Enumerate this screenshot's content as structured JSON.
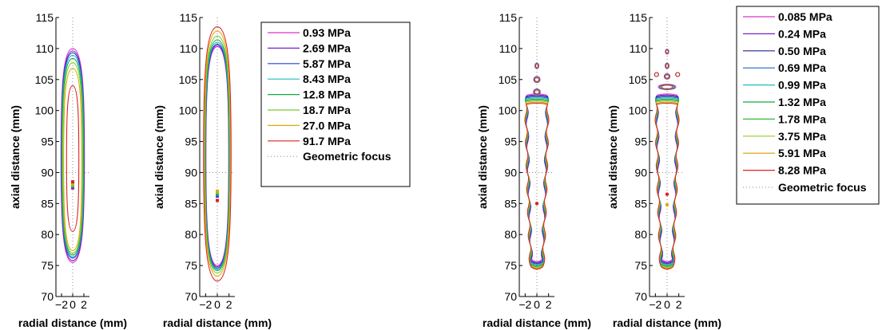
{
  "chart_data": [
    {
      "type": "line",
      "panel": "a-left",
      "xlabel": "radial distance (mm)",
      "ylabel": "axial distance (mm)",
      "xlim": [
        -3,
        3
      ],
      "ylim": [
        70,
        115
      ],
      "xticks": [
        "−2",
        "0",
        "2"
      ],
      "yticks": [
        "70",
        "75",
        "80",
        "85",
        "90",
        "95",
        "100",
        "105",
        "110",
        "115"
      ],
      "geometric_focus": [
        0,
        90
      ],
      "series": [
        {
          "name": "0.93 MPa",
          "color": "#dd33cc",
          "contour": {
            "center": 92.7,
            "top": 110.0,
            "bottom": 75.5,
            "halfwidth": 2.1
          },
          "peak": [
            0,
            87.5
          ]
        },
        {
          "name": "2.69 MPa",
          "color": "#7722cc",
          "contour": {
            "center": 92.7,
            "top": 109.6,
            "bottom": 75.8,
            "halfwidth": 2.05
          },
          "peak": [
            0,
            87.6
          ]
        },
        {
          "name": "5.87 MPa",
          "color": "#2244cc",
          "contour": {
            "center": 92.7,
            "top": 109.3,
            "bottom": 76.2,
            "halfwidth": 2.0
          },
          "peak": [
            0,
            87.7
          ]
        },
        {
          "name": "8.43 MPa",
          "color": "#22bbbb",
          "contour": {
            "center": 92.6,
            "top": 108.9,
            "bottom": 76.4,
            "halfwidth": 1.95
          },
          "peak": [
            0,
            87.8
          ]
        },
        {
          "name": "12.8 MPa",
          "color": "#11aa44",
          "contour": {
            "center": 92.5,
            "top": 108.4,
            "bottom": 76.7,
            "halfwidth": 1.88
          },
          "peak": [
            0,
            87.9
          ]
        },
        {
          "name": "18.7 MPa",
          "color": "#77cc33",
          "contour": {
            "center": 92.3,
            "top": 107.7,
            "bottom": 77.0,
            "halfwidth": 1.78
          },
          "peak": [
            0,
            88.0
          ]
        },
        {
          "name": "27.0 MPa",
          "color": "#ddaa00",
          "contour": {
            "center": 92.0,
            "top": 106.8,
            "bottom": 77.4,
            "halfwidth": 1.62
          },
          "peak": [
            0,
            88.2
          ]
        },
        {
          "name": "91.7 MPa",
          "color": "#dd2222",
          "contour": {
            "center": 92.2,
            "top": 104.0,
            "bottom": 80.5,
            "halfwidth": 1.1
          },
          "peak": [
            0,
            88.5
          ]
        }
      ]
    },
    {
      "type": "line",
      "panel": "a-right",
      "xlabel": "radial distance (mm)",
      "ylabel": "axial distance (mm)",
      "xlim": [
        -3,
        3
      ],
      "ylim": [
        70,
        115
      ],
      "xticks": [
        "−2",
        "0",
        "2"
      ],
      "yticks": [
        "70",
        "75",
        "80",
        "85",
        "90",
        "95",
        "100",
        "105",
        "110",
        "115"
      ],
      "geometric_focus": [
        0,
        90
      ],
      "series": [
        {
          "name": "0.93 MPa",
          "color": "#dd33cc",
          "contour": {
            "center": 92.6,
            "top": 110.3,
            "bottom": 75.0,
            "halfwidth": 1.95
          },
          "peak": [
            0,
            86.2
          ]
        },
        {
          "name": "2.69 MPa",
          "color": "#7722cc",
          "contour": {
            "center": 92.6,
            "top": 110.5,
            "bottom": 74.8,
            "halfwidth": 1.97
          },
          "peak": [
            0,
            86.2
          ]
        },
        {
          "name": "5.87 MPa",
          "color": "#2244cc",
          "contour": {
            "center": 92.6,
            "top": 110.7,
            "bottom": 74.6,
            "halfwidth": 2.0
          },
          "peak": [
            0,
            86.3
          ]
        },
        {
          "name": "8.43 MPa",
          "color": "#22bbbb",
          "contour": {
            "center": 92.6,
            "top": 111.0,
            "bottom": 74.4,
            "halfwidth": 2.04
          },
          "peak": [
            0,
            86.5
          ]
        },
        {
          "name": "12.8 MPa",
          "color": "#11aa44",
          "contour": {
            "center": 92.7,
            "top": 111.4,
            "bottom": 74.2,
            "halfwidth": 2.08
          },
          "peak": [
            0,
            86.6
          ]
        },
        {
          "name": "18.7 MPa",
          "color": "#77cc33",
          "contour": {
            "center": 92.8,
            "top": 112.0,
            "bottom": 73.8,
            "halfwidth": 2.14
          },
          "peak": [
            0,
            86.8
          ]
        },
        {
          "name": "27.0 MPa",
          "color": "#ddaa00",
          "contour": {
            "center": 92.9,
            "top": 112.8,
            "bottom": 73.3,
            "halfwidth": 2.22
          },
          "peak": [
            0,
            87.0
          ]
        },
        {
          "name": "91.7 MPa",
          "color": "#dd2222",
          "contour": {
            "center": 93.0,
            "top": 113.5,
            "bottom": 72.5,
            "halfwidth": 2.35
          },
          "peak": [
            0,
            85.5
          ]
        }
      ],
      "legend": {
        "entries": [
          "0.93 MPa",
          "2.69 MPa",
          "5.87 MPa",
          "8.43 MPa",
          "12.8 MPa",
          "18.7 MPa",
          "27.0 MPa",
          "91.7 MPa",
          "Geometric focus"
        ],
        "colors": [
          "#dd33cc",
          "#7722cc",
          "#2244cc",
          "#22bbbb",
          "#11aa44",
          "#77cc33",
          "#ddaa00",
          "#dd2222",
          "#888888"
        ],
        "placement": "right"
      }
    },
    {
      "type": "line",
      "panel": "b-left",
      "xlabel": "radial distance (mm)",
      "ylabel": "axial distance (mm)",
      "xlim": [
        -3,
        3
      ],
      "ylim": [
        70,
        115
      ],
      "xticks": [
        "−2",
        "0",
        "2"
      ],
      "yticks": [
        "70",
        "75",
        "80",
        "85",
        "90",
        "95",
        "100",
        "105",
        "110",
        "115"
      ],
      "geometric_focus": [
        0,
        90
      ],
      "peak": [
        0,
        85.0
      ],
      "series": [
        {
          "name": "0.085 MPa",
          "color": "#dd33cc"
        },
        {
          "name": "0.24 MPa",
          "color": "#7722cc"
        },
        {
          "name": "0.50 MPa",
          "color": "#222299"
        },
        {
          "name": "0.69 MPa",
          "color": "#2266cc"
        },
        {
          "name": "0.99 MPa",
          "color": "#22bbbb"
        },
        {
          "name": "1.32 MPa",
          "color": "#11aa44"
        },
        {
          "name": "1.78 MPa",
          "color": "#33bb33"
        },
        {
          "name": "3.75 MPa",
          "color": "#99cc22"
        },
        {
          "name": "5.91 MPa",
          "color": "#dd9900"
        },
        {
          "name": "8.28 MPa",
          "color": "#dd2222"
        }
      ]
    },
    {
      "type": "line",
      "panel": "b-right",
      "xlabel": "radial distance (mm)",
      "ylabel": "axial distance (mm)",
      "xlim": [
        -3,
        3
      ],
      "ylim": [
        70,
        115
      ],
      "xticks": [
        "−2",
        "0",
        "2"
      ],
      "yticks": [
        "70",
        "75",
        "80",
        "85",
        "90",
        "95",
        "100",
        "105",
        "110",
        "115"
      ],
      "geometric_focus": [
        0,
        90
      ],
      "peak": [
        0,
        86.5
      ],
      "series": [
        {
          "name": "0.085 MPa",
          "color": "#dd33cc"
        },
        {
          "name": "0.24 MPa",
          "color": "#7722cc"
        },
        {
          "name": "0.50 MPa",
          "color": "#222299"
        },
        {
          "name": "0.69 MPa",
          "color": "#2266cc"
        },
        {
          "name": "0.99 MPa",
          "color": "#22bbbb"
        },
        {
          "name": "1.32 MPa",
          "color": "#11aa44"
        },
        {
          "name": "1.78 MPa",
          "color": "#33bb33"
        },
        {
          "name": "3.75 MPa",
          "color": "#99cc22"
        },
        {
          "name": "5.91 MPa",
          "color": "#dd9900"
        },
        {
          "name": "8.28 MPa",
          "color": "#dd2222"
        }
      ],
      "legend": {
        "entries": [
          "0.085 MPa",
          "0.24 MPa",
          "0.50 MPa",
          "0.69 MPa",
          "0.99 MPa",
          "1.32 MPa",
          "1.78 MPa",
          "3.75 MPa",
          "5.91 MPa",
          "8.28 MPa",
          "Geometric focus"
        ],
        "colors": [
          "#dd33cc",
          "#7722cc",
          "#222299",
          "#2266cc",
          "#22bbbb",
          "#11aa44",
          "#33bb33",
          "#99cc22",
          "#dd9900",
          "#dd2222",
          "#888888"
        ],
        "placement": "right"
      }
    }
  ]
}
